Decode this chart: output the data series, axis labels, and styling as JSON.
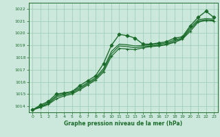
{
  "title": "",
  "xlabel": "Graphe pression niveau de la mer (hPa)",
  "ylabel": "",
  "bg_color": "#cce8dc",
  "grid_color": "#99ccb3",
  "line_color": "#1a6b2a",
  "xlim": [
    -0.5,
    23.5
  ],
  "ylim": [
    1013.5,
    1022.5
  ],
  "yticks": [
    1014,
    1015,
    1016,
    1017,
    1018,
    1019,
    1020,
    1021,
    1022
  ],
  "xticks": [
    0,
    1,
    2,
    3,
    4,
    5,
    6,
    7,
    8,
    9,
    10,
    11,
    12,
    13,
    14,
    15,
    16,
    17,
    18,
    19,
    20,
    21,
    22,
    23
  ],
  "series": [
    {
      "x": [
        0,
        1,
        2,
        3,
        4,
        5,
        6,
        7,
        8,
        9,
        10,
        11,
        12,
        13,
        14,
        15,
        16,
        17,
        18,
        19,
        20,
        21,
        22,
        23
      ],
      "y": [
        1013.7,
        1014.1,
        1014.4,
        1015.0,
        1015.1,
        1015.2,
        1015.7,
        1016.1,
        1016.5,
        1017.5,
        1019.0,
        1019.9,
        1019.8,
        1019.6,
        1019.1,
        1019.1,
        1019.2,
        1019.3,
        1019.6,
        1019.7,
        1020.6,
        1021.3,
        1021.8,
        1021.3
      ],
      "marker": "D",
      "markersize": 2.5,
      "linewidth": 1.0
    },
    {
      "x": [
        0,
        1,
        2,
        3,
        4,
        5,
        6,
        7,
        8,
        9,
        10,
        11,
        12,
        13,
        14,
        15,
        16,
        17,
        18,
        19,
        20,
        21,
        22,
        23
      ],
      "y": [
        1013.7,
        1014.0,
        1014.3,
        1014.85,
        1015.05,
        1015.2,
        1015.55,
        1015.95,
        1016.35,
        1017.1,
        1018.5,
        1019.1,
        1019.05,
        1018.95,
        1019.0,
        1019.05,
        1019.1,
        1019.2,
        1019.45,
        1019.6,
        1020.45,
        1021.1,
        1021.2,
        1021.15
      ],
      "marker": null,
      "markersize": 0,
      "linewidth": 0.9
    },
    {
      "x": [
        0,
        1,
        2,
        3,
        4,
        5,
        6,
        7,
        8,
        9,
        10,
        11,
        12,
        13,
        14,
        15,
        16,
        17,
        18,
        19,
        20,
        21,
        22,
        23
      ],
      "y": [
        1013.7,
        1013.95,
        1014.2,
        1014.75,
        1014.95,
        1015.1,
        1015.45,
        1015.85,
        1016.25,
        1016.95,
        1018.3,
        1018.95,
        1018.9,
        1018.8,
        1018.9,
        1018.95,
        1019.0,
        1019.1,
        1019.35,
        1019.55,
        1020.3,
        1021.0,
        1021.1,
        1021.05
      ],
      "marker": null,
      "markersize": 0,
      "linewidth": 0.9
    },
    {
      "x": [
        0,
        1,
        2,
        3,
        4,
        5,
        6,
        7,
        8,
        9,
        10,
        11,
        12,
        13,
        14,
        15,
        16,
        17,
        18,
        19,
        20,
        21,
        22,
        23
      ],
      "y": [
        1013.7,
        1013.9,
        1014.15,
        1014.6,
        1014.85,
        1015.0,
        1015.35,
        1015.75,
        1016.15,
        1016.8,
        1018.1,
        1018.75,
        1018.7,
        1018.65,
        1018.8,
        1018.9,
        1018.95,
        1019.05,
        1019.25,
        1019.5,
        1020.15,
        1020.9,
        1021.05,
        1021.0
      ],
      "marker": "+",
      "markersize": 3.5,
      "linewidth": 0.9
    }
  ]
}
